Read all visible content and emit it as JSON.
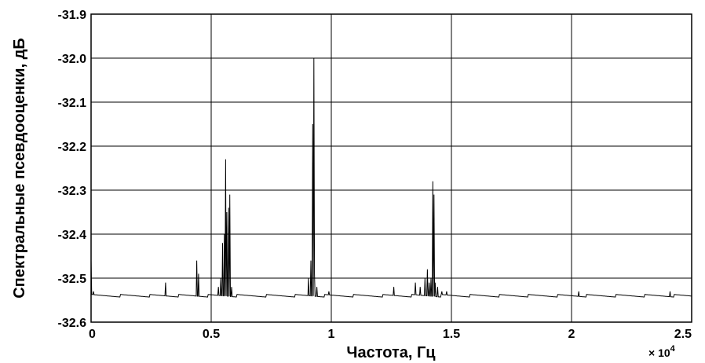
{
  "chart_data": {
    "type": "line",
    "xlabel": "Частота, Гц",
    "ylabel": "Спектральные псевдооценки, дБ",
    "x_multiplier": "× 10",
    "x_multiplier_exp": "4",
    "xlim": [
      0,
      25000
    ],
    "ylim": [
      -32.6,
      -31.9
    ],
    "grid": true,
    "x_ticks": [
      {
        "value": 0,
        "label": "0"
      },
      {
        "value": 5000,
        "label": "0.5"
      },
      {
        "value": 10000,
        "label": "1"
      },
      {
        "value": 15000,
        "label": "1.5"
      },
      {
        "value": 20000,
        "label": "2"
      },
      {
        "value": 25000,
        "label": "2.5"
      }
    ],
    "y_ticks": [
      {
        "value": -31.9,
        "label": "-31.9"
      },
      {
        "value": -32.0,
        "label": "-32.0"
      },
      {
        "value": -32.1,
        "label": "-32.1"
      },
      {
        "value": -32.2,
        "label": "-32.2"
      },
      {
        "value": -32.3,
        "label": "-32.3"
      },
      {
        "value": -32.4,
        "label": "-32.4"
      },
      {
        "value": -32.5,
        "label": "-32.5"
      },
      {
        "value": -32.6,
        "label": "-32.6"
      }
    ],
    "baseline": -32.54,
    "series": [
      {
        "peaks": [
          {
            "x": 0,
            "y": -32.46
          },
          {
            "x": 100,
            "y": -32.53
          },
          {
            "x": 3100,
            "y": -32.51
          },
          {
            "x": 4400,
            "y": -32.46
          },
          {
            "x": 4480,
            "y": -32.49
          },
          {
            "x": 5300,
            "y": -32.52
          },
          {
            "x": 5400,
            "y": -32.5
          },
          {
            "x": 5470,
            "y": -32.42
          },
          {
            "x": 5560,
            "y": -32.4
          },
          {
            "x": 5600,
            "y": -32.23
          },
          {
            "x": 5650,
            "y": -32.35
          },
          {
            "x": 5720,
            "y": -32.34
          },
          {
            "x": 5780,
            "y": -32.31
          },
          {
            "x": 5850,
            "y": -32.52
          },
          {
            "x": 9050,
            "y": -32.5
          },
          {
            "x": 9150,
            "y": -32.46
          },
          {
            "x": 9230,
            "y": -32.15
          },
          {
            "x": 9270,
            "y": -32.0
          },
          {
            "x": 9310,
            "y": -32.49
          },
          {
            "x": 9400,
            "y": -32.52
          },
          {
            "x": 9900,
            "y": -32.53
          },
          {
            "x": 12600,
            "y": -32.52
          },
          {
            "x": 13500,
            "y": -32.51
          },
          {
            "x": 13700,
            "y": -32.52
          },
          {
            "x": 13900,
            "y": -32.5
          },
          {
            "x": 14000,
            "y": -32.48
          },
          {
            "x": 14080,
            "y": -32.51
          },
          {
            "x": 14150,
            "y": -32.5
          },
          {
            "x": 14220,
            "y": -32.28
          },
          {
            "x": 14270,
            "y": -32.31
          },
          {
            "x": 14330,
            "y": -32.51
          },
          {
            "x": 14420,
            "y": -32.52
          },
          {
            "x": 14600,
            "y": -32.53
          },
          {
            "x": 14800,
            "y": -32.53
          },
          {
            "x": 20300,
            "y": -32.53
          },
          {
            "x": 24100,
            "y": -32.53
          }
        ]
      }
    ]
  }
}
